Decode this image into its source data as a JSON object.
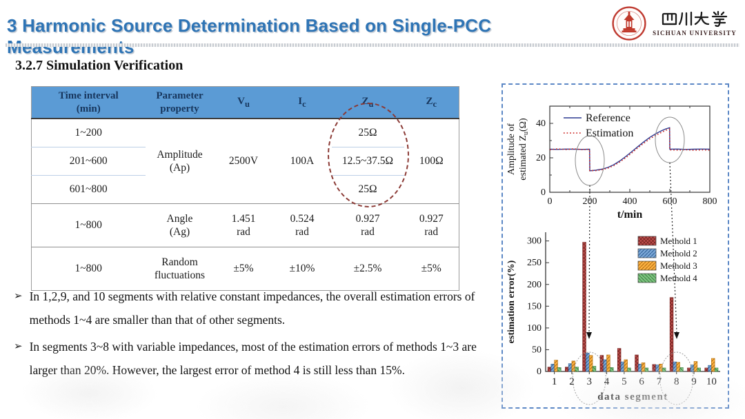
{
  "header": {
    "title": "3 Harmonic Source Determination Based on Single-PCC Measurements",
    "logo": {
      "chinese": "四川大學",
      "english": "SICHUAN UNIVERSITY"
    }
  },
  "section": {
    "heading": "3.2.7 Simulation Verification"
  },
  "table": {
    "headers": [
      {
        "lines": [
          "Time interval",
          "(min)"
        ]
      },
      {
        "lines": [
          "Parameter",
          "property"
        ]
      },
      {
        "main": "V",
        "sub": "u"
      },
      {
        "main": "I",
        "sub": "c"
      },
      {
        "main": "Z",
        "sub": "u"
      },
      {
        "main": "Z",
        "sub": "c"
      }
    ],
    "rows": [
      {
        "kind": "subrow",
        "cells": [
          {
            "text": "1~200"
          },
          {
            "lines": [
              "Amplitude",
              "(Ap)"
            ],
            "rowspan": 3
          },
          {
            "text": "2500V",
            "rowspan": 3
          },
          {
            "text": "100A",
            "rowspan": 3
          },
          {
            "text": "25Ω"
          },
          {
            "text": "100Ω",
            "rowspan": 3
          }
        ]
      },
      {
        "kind": "subrow subrow2",
        "cells": [
          {
            "text": "201~600"
          },
          {
            "text": "12.5~37.5Ω"
          }
        ]
      },
      {
        "kind": "subrow subrow2",
        "cells": [
          {
            "text": "601~800"
          },
          {
            "text": "25Ω"
          }
        ]
      },
      {
        "kind": "mainrow",
        "cells": [
          {
            "text": "1~800"
          },
          {
            "lines": [
              "Angle",
              "(Ag)"
            ]
          },
          {
            "lines": [
              "1.451",
              "rad"
            ]
          },
          {
            "lines": [
              "0.524",
              "rad"
            ]
          },
          {
            "lines": [
              "0.927",
              "rad"
            ]
          },
          {
            "lines": [
              "0.927",
              "rad"
            ]
          }
        ]
      },
      {
        "kind": "mainrow",
        "cells": [
          {
            "text": "1~800"
          },
          {
            "lines": [
              "Random",
              "fluctuations"
            ]
          },
          {
            "text": "±5%"
          },
          {
            "text": "±10%"
          },
          {
            "text": "±2.5%"
          },
          {
            "text": "±5%"
          }
        ]
      }
    ]
  },
  "bullets": {
    "glyph": "➢",
    "items": [
      "In 1,2,9, and 10 segments with relative constant impedances, the overall estimation errors of methods 1~4 are smaller than that of other segments.",
      "In segments 3~8 with variable impedances, most of the estimation errors of methods 1~3 are larger than 20%. However, the largest error of method 4 is still less than 15%."
    ]
  },
  "colors": {
    "title_blue": "#2e74b5",
    "table_header_blue": "#5b9bd5",
    "panel_border_blue": "#5b87c5",
    "annotation_maroon": "#8b3a35",
    "reference_line": "#2b3990",
    "estimation_line": "#cc2a27",
    "method1_red": "#c0504d",
    "method2_blue": "#7ba7d7",
    "method3_orange": "#fbb042",
    "method4_green": "#7cc47f",
    "seal_red": "#bf3a30"
  },
  "chart_data": [
    {
      "type": "line",
      "xlabel": "t/min",
      "ylabel_lines": [
        "Amplitude of",
        "estimated Z_u(Ω)"
      ],
      "xlim": [
        0,
        800
      ],
      "ylim": [
        0,
        50
      ],
      "xticks": [
        0,
        200,
        400,
        600,
        800
      ],
      "yticks": [
        0,
        20,
        40
      ],
      "x_minor_step": 100,
      "y_minor_step": 10,
      "legend_position": "top-left",
      "series": [
        {
          "name": "Reference",
          "color": "#2b3990",
          "style": "solid",
          "x": [
            0,
            40,
            80,
            120,
            160,
            199,
            200,
            230,
            260,
            290,
            320,
            350,
            380,
            410,
            440,
            470,
            500,
            530,
            560,
            580,
            599,
            600,
            640,
            680,
            720,
            760,
            800
          ],
          "y": [
            25,
            24.9,
            25.1,
            25,
            24.9,
            25,
            12.5,
            12.8,
            13.4,
            14.4,
            16.0,
            18.2,
            20.8,
            23.6,
            26.5,
            29.3,
            31.9,
            34.0,
            35.8,
            36.8,
            37.5,
            25,
            25.1,
            24.9,
            25,
            25.1,
            25
          ]
        },
        {
          "name": "Estimation",
          "color": "#cc2a27",
          "style": "dotted",
          "x": [
            0,
            40,
            80,
            120,
            160,
            199,
            200,
            230,
            260,
            290,
            320,
            350,
            380,
            410,
            440,
            470,
            500,
            530,
            560,
            580,
            599,
            600,
            640,
            680,
            720,
            760,
            800
          ],
          "y": [
            24.7,
            25.2,
            24.8,
            25.2,
            24.8,
            24.9,
            12.6,
            12.6,
            13.1,
            14.0,
            15.5,
            17.6,
            20.1,
            22.9,
            25.8,
            28.5,
            31.0,
            33.1,
            34.9,
            36.0,
            36.8,
            24.6,
            24.5,
            24.7,
            24.4,
            24.6,
            24.5
          ]
        }
      ],
      "annotations": {
        "ellipses_at_x": [
          200,
          600
        ]
      }
    },
    {
      "type": "bar",
      "xlabel": "data segment",
      "ylabel": "estimation error(%)",
      "ylim": [
        0,
        320
      ],
      "yticks": [
        0,
        50,
        100,
        150,
        200,
        250,
        300
      ],
      "categories": [
        1,
        2,
        3,
        4,
        5,
        6,
        7,
        8,
        9,
        10
      ],
      "legend_position": "top-right",
      "series": [
        {
          "name": "Methold 1",
          "color": "#c0504d",
          "values": [
            10,
            10,
            297,
            37,
            53,
            38,
            16,
            170,
            8,
            8
          ]
        },
        {
          "name": "Methold 2",
          "color": "#7ba7d7",
          "values": [
            17,
            18,
            42,
            27,
            22,
            17,
            15,
            22,
            15,
            14
          ]
        },
        {
          "name": "Methold 3",
          "color": "#fbb042",
          "values": [
            26,
            24,
            37,
            38,
            27,
            20,
            17,
            21,
            23,
            30
          ]
        },
        {
          "name": "Methold 4",
          "color": "#7cc47f",
          "values": [
            9,
            10,
            12,
            9,
            8,
            8,
            8,
            9,
            8,
            8
          ]
        }
      ],
      "annotations": {
        "circled_categories": [
          3,
          8
        ],
        "arrow_tip_value": 75
      }
    }
  ]
}
